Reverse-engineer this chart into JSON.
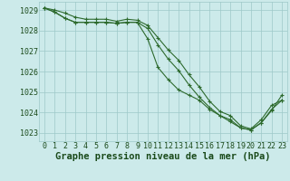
{
  "title": "Graphe pression niveau de la mer (hPa)",
  "x_labels": [
    "0",
    "1",
    "2",
    "3",
    "4",
    "5",
    "6",
    "7",
    "8",
    "9",
    "10",
    "11",
    "12",
    "13",
    "14",
    "15",
    "16",
    "17",
    "18",
    "19",
    "20",
    "21",
    "22",
    "23"
  ],
  "ylim": [
    1022.6,
    1029.4
  ],
  "yticks": [
    1023,
    1024,
    1025,
    1026,
    1027,
    1028,
    1029
  ],
  "series": [
    [
      1029.1,
      1029.0,
      1028.85,
      1028.65,
      1028.55,
      1028.55,
      1028.55,
      1028.45,
      1028.55,
      1028.5,
      1028.25,
      1027.65,
      1027.05,
      1026.55,
      1025.85,
      1025.25,
      1024.55,
      1024.05,
      1023.85,
      1023.35,
      1023.2,
      1023.65,
      1024.35,
      1024.6
    ],
    [
      1029.1,
      1028.9,
      1028.6,
      1028.4,
      1028.4,
      1028.4,
      1028.4,
      1028.35,
      1028.4,
      1028.4,
      1027.6,
      1026.2,
      1025.6,
      1025.1,
      1024.85,
      1024.6,
      1024.15,
      1023.85,
      1023.55,
      1023.25,
      1023.15,
      1023.5,
      1024.1,
      1024.85
    ],
    [
      1029.1,
      1028.9,
      1028.6,
      1028.4,
      1028.4,
      1028.4,
      1028.4,
      1028.35,
      1028.4,
      1028.4,
      1028.1,
      1027.3,
      1026.6,
      1026.05,
      1025.35,
      1024.75,
      1024.25,
      1023.85,
      1023.65,
      1023.25,
      1023.15,
      1023.5,
      1024.15,
      1024.6
    ]
  ],
  "line_color": "#2d6a2d",
  "marker": "+",
  "bg_color": "#cceaea",
  "grid_color": "#9ec8c8",
  "label_color": "#1a4a1a",
  "title_fontsize": 7.5,
  "tick_fontsize": 6.0
}
